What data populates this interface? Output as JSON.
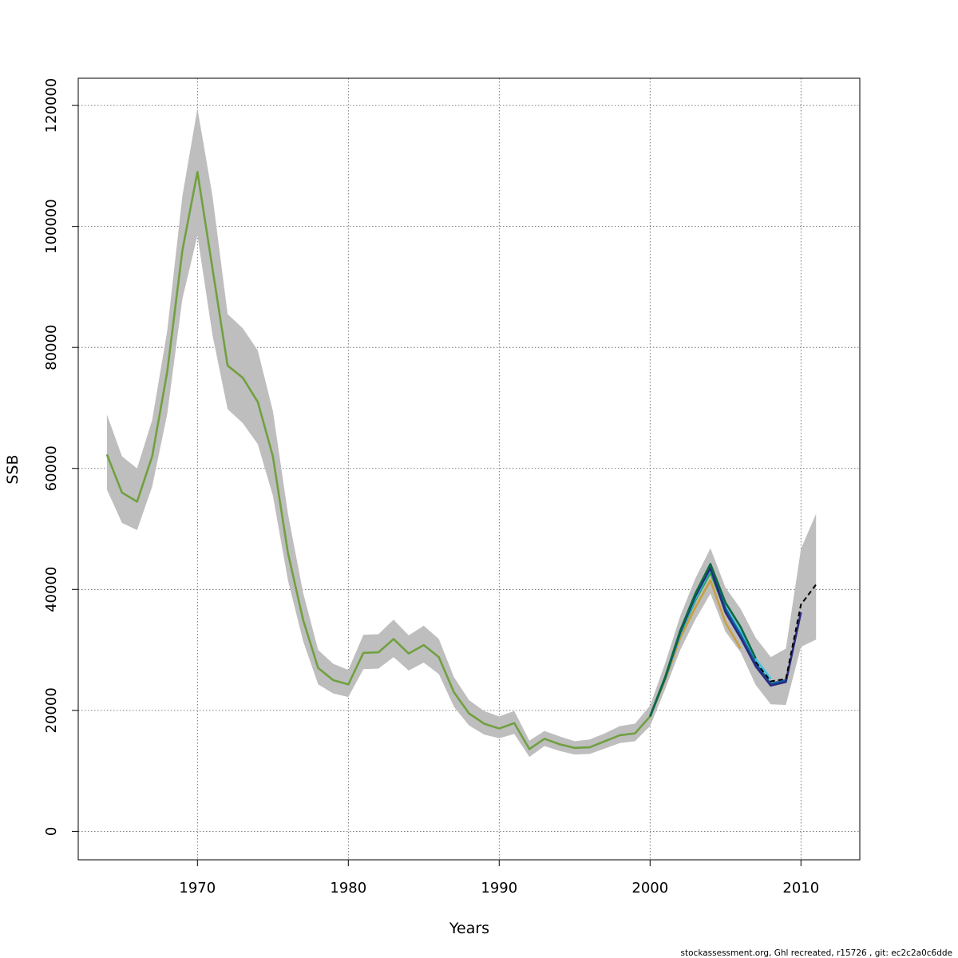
{
  "chart_data": {
    "type": "line",
    "title": "",
    "xlabel": "Years",
    "ylabel": "SSB",
    "xlim": [
      1962.1,
      2013.9
    ],
    "ylim": [
      -4700,
      124500
    ],
    "x_ticks": [
      1970,
      1980,
      1990,
      2000,
      2010
    ],
    "y_ticks": [
      0,
      20000,
      40000,
      60000,
      80000,
      100000,
      120000
    ],
    "grid": true,
    "legend": "none",
    "band": {
      "color": "#bebebe",
      "x": [
        1964,
        1965,
        1966,
        1967,
        1968,
        1969,
        1970,
        1971,
        1972,
        1973,
        1974,
        1975,
        1976,
        1977,
        1978,
        1979,
        1980,
        1981,
        1982,
        1983,
        1984,
        1985,
        1986,
        1987,
        1988,
        1989,
        1990,
        1991,
        1992,
        1993,
        1994,
        1995,
        1996,
        1997,
        1998,
        1999,
        2000,
        2001,
        2002,
        2003,
        2004,
        2005,
        2006,
        2007,
        2008,
        2009,
        2010,
        2011
      ],
      "lower": [
        56500,
        51000,
        49800,
        57000,
        69000,
        88000,
        98500,
        82000,
        69800,
        67500,
        64000,
        55500,
        41500,
        31500,
        24300,
        22800,
        22200,
        26800,
        26900,
        28800,
        26600,
        27900,
        26000,
        20600,
        17500,
        16000,
        15400,
        16100,
        12300,
        14100,
        13300,
        12700,
        12800,
        13700,
        14600,
        14900,
        17400,
        23500,
        30000,
        35000,
        39300,
        33000,
        29600,
        24200,
        21000,
        20900,
        30500,
        31700
      ],
      "upper": [
        68900,
        62000,
        60000,
        68000,
        82800,
        105000,
        119500,
        105000,
        85500,
        83200,
        79500,
        69500,
        52500,
        39500,
        30000,
        27700,
        26700,
        32500,
        32600,
        35000,
        32400,
        34000,
        31800,
        25500,
        21700,
        19900,
        19000,
        19900,
        15000,
        16600,
        15700,
        14900,
        15200,
        16200,
        17400,
        17800,
        20800,
        27800,
        35600,
        41800,
        46800,
        40300,
        36800,
        32000,
        28800,
        30200,
        46700,
        52500
      ]
    },
    "series": [
      {
        "color": "#70a040",
        "values": [
          [
            1964,
            62300
          ],
          [
            1965,
            56000
          ],
          [
            1966,
            54500
          ],
          [
            1967,
            62000
          ],
          [
            1968,
            76000
          ],
          [
            1969,
            96000
          ],
          [
            1970,
            109000
          ],
          [
            1971,
            93000
          ],
          [
            1972,
            77000
          ],
          [
            1973,
            75000
          ],
          [
            1974,
            71000
          ],
          [
            1975,
            62000
          ],
          [
            1976,
            46000
          ],
          [
            1977,
            35000
          ],
          [
            1978,
            27000
          ],
          [
            1979,
            25000
          ],
          [
            1980,
            24300
          ],
          [
            1981,
            29500
          ],
          [
            1982,
            29600
          ],
          [
            1983,
            31800
          ],
          [
            1984,
            29400
          ],
          [
            1985,
            30800
          ],
          [
            1986,
            28800
          ],
          [
            1987,
            23000
          ],
          [
            1988,
            19500
          ],
          [
            1989,
            17800
          ],
          [
            1990,
            17000
          ],
          [
            1991,
            17900
          ],
          [
            1992,
            13600
          ],
          [
            1993,
            15300
          ],
          [
            1994,
            14400
          ],
          [
            1995,
            13800
          ],
          [
            1996,
            13900
          ],
          [
            1997,
            14900
          ],
          [
            1998,
            15900
          ],
          [
            1999,
            16200
          ],
          [
            2000,
            19000
          ]
        ]
      },
      {
        "color": "#c8a040",
        "values": [
          [
            2000,
            19000
          ],
          [
            2001,
            25000
          ],
          [
            2002,
            32000
          ],
          [
            2003,
            37000
          ],
          [
            2004,
            41500
          ],
          [
            2005,
            34500
          ],
          [
            2006,
            30200
          ]
        ]
      },
      {
        "color": "#20a050",
        "values": [
          [
            2000,
            19000
          ],
          [
            2001,
            25300
          ],
          [
            2002,
            32600
          ],
          [
            2003,
            38200
          ],
          [
            2004,
            42800
          ],
          [
            2005,
            36500
          ]
        ]
      },
      {
        "color": "#40c0e0",
        "values": [
          [
            2000,
            19000
          ],
          [
            2001,
            25300
          ],
          [
            2002,
            32700
          ],
          [
            2003,
            38500
          ],
          [
            2004,
            43300
          ],
          [
            2005,
            37000
          ],
          [
            2006,
            33000
          ],
          [
            2007,
            28500
          ],
          [
            2008,
            25200
          ]
        ]
      },
      {
        "color": "#1060a0",
        "values": [
          [
            2000,
            19000
          ],
          [
            2001,
            25400
          ],
          [
            2002,
            32900
          ],
          [
            2003,
            38800
          ],
          [
            2004,
            43600
          ],
          [
            2005,
            36800
          ],
          [
            2006,
            32500
          ],
          [
            2007,
            27800
          ],
          [
            2008,
            24400
          ],
          [
            2009,
            25000
          ]
        ]
      },
      {
        "color": "#2a2a80",
        "values": [
          [
            2000,
            19000
          ],
          [
            2001,
            25400
          ],
          [
            2002,
            33000
          ],
          [
            2003,
            39000
          ],
          [
            2004,
            43500
          ],
          [
            2005,
            36200
          ],
          [
            2006,
            32000
          ],
          [
            2007,
            27300
          ],
          [
            2008,
            24100
          ],
          [
            2009,
            24700
          ],
          [
            2010,
            36200
          ]
        ]
      },
      {
        "color": "#0a6a40",
        "values": [
          [
            2000,
            19000
          ],
          [
            2001,
            25500
          ],
          [
            2002,
            33200
          ],
          [
            2003,
            39300
          ],
          [
            2004,
            44200
          ],
          [
            2005,
            37800
          ],
          [
            2006,
            33800
          ],
          [
            2007,
            28600
          ]
        ]
      },
      {
        "color": "#000000",
        "dashed": true,
        "values": [
          [
            2007,
            28000
          ],
          [
            2008,
            24800
          ],
          [
            2009,
            25200
          ],
          [
            2010,
            37500
          ],
          [
            2011,
            40800
          ]
        ]
      }
    ]
  },
  "footer": {
    "text": "stockassessment.org, Ghl  recreated, r15726 , git: ec2c2a0c6dde"
  }
}
